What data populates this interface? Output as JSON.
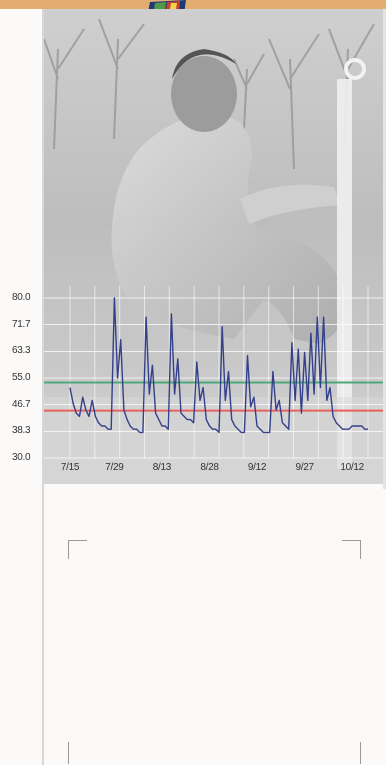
{
  "chart_data": {
    "type": "line",
    "title": "",
    "xlabel": "",
    "ylabel": "",
    "ylim": [
      30.0,
      80.0
    ],
    "yticks": [
      "80.0",
      "71.7",
      "63.3",
      "55.0",
      "46.7",
      "38.3",
      "30.0"
    ],
    "ytick_values": [
      80.0,
      71.7,
      63.3,
      55.0,
      46.7,
      38.3,
      30.0
    ],
    "xlim": [
      "7/15",
      "10/17"
    ],
    "xticks": [
      "7/15",
      "7/29",
      "8/13",
      "8/28",
      "9/12",
      "9/27",
      "10/12"
    ],
    "grid": true,
    "reference_lines": [
      {
        "value": 53.6,
        "color": "#4fa878"
      },
      {
        "value": 44.8,
        "color": "#e8615c"
      }
    ],
    "series": [
      {
        "color": "#34408a",
        "x": [
          "7/15",
          "7/16",
          "7/17",
          "7/18",
          "7/19",
          "7/20",
          "7/21",
          "7/22",
          "7/23",
          "7/24",
          "7/25",
          "7/26",
          "7/27",
          "7/28",
          "7/29",
          "7/30",
          "7/31",
          "8/1",
          "8/2",
          "8/3",
          "8/4",
          "8/5",
          "8/6",
          "8/7",
          "8/8",
          "8/9",
          "8/10",
          "8/11",
          "8/12",
          "8/13",
          "8/14",
          "8/15",
          "8/16",
          "8/17",
          "8/18",
          "8/19",
          "8/20",
          "8/21",
          "8/22",
          "8/23",
          "8/24",
          "8/25",
          "8/26",
          "8/27",
          "8/28",
          "8/29",
          "8/30",
          "8/31",
          "9/1",
          "9/2",
          "9/3",
          "9/4",
          "9/5",
          "9/6",
          "9/7",
          "9/8",
          "9/9",
          "9/10",
          "9/11",
          "9/12",
          "9/13",
          "9/14",
          "9/15",
          "9/16",
          "9/17",
          "9/18",
          "9/19",
          "9/20",
          "9/21",
          "9/22",
          "9/23",
          "9/24",
          "9/25",
          "9/26",
          "9/27",
          "9/28",
          "9/29",
          "9/30",
          "10/1",
          "10/2",
          "10/3",
          "10/4",
          "10/5",
          "10/6",
          "10/7",
          "10/8",
          "10/9",
          "10/10",
          "10/11",
          "10/12",
          "10/13",
          "10/14",
          "10/15",
          "10/16",
          "10/17"
        ],
        "values": [
          52,
          47,
          44,
          43,
          49,
          45,
          43,
          48,
          43,
          41,
          40,
          40,
          39,
          39,
          80,
          55,
          67,
          45,
          42,
          40,
          39,
          39,
          38,
          38,
          74,
          50,
          59,
          44,
          42,
          40,
          40,
          39,
          75,
          50,
          61,
          44,
          43,
          42,
          42,
          41,
          60,
          48,
          52,
          42,
          40,
          39,
          39,
          38,
          71,
          48,
          57,
          42,
          40,
          39,
          38,
          38,
          62,
          46,
          49,
          40,
          39,
          38,
          38,
          38,
          57,
          45,
          48,
          41,
          40,
          39,
          66,
          48,
          64,
          44,
          63,
          48,
          69,
          50,
          74,
          52,
          74,
          48,
          52,
          43,
          41,
          40,
          39,
          39,
          39,
          40,
          40,
          40,
          40,
          39,
          39
        ]
      }
    ]
  }
}
